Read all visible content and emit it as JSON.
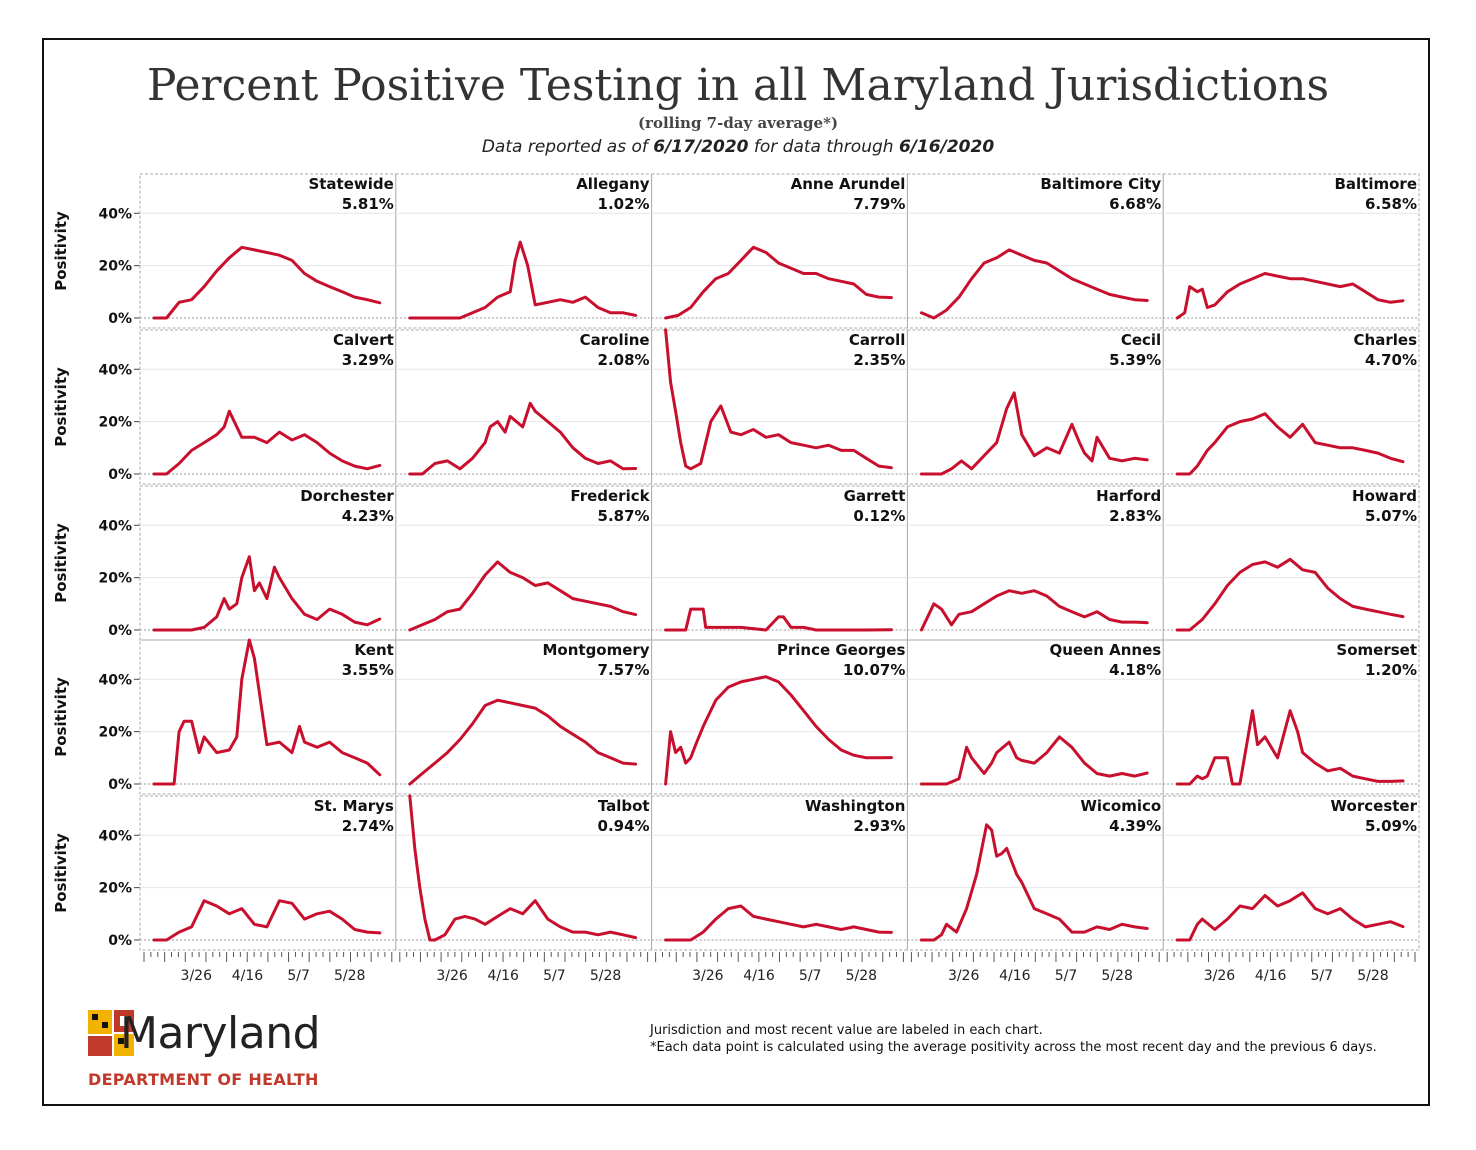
{
  "header": {
    "title": "Percent Positive Testing in all Maryland Jurisdictions",
    "subtitle": "(rolling 7-day average*)",
    "dateline_prefix": "Data reported as of ",
    "report_date": "6/17/2020",
    "dateline_middle": " for data through ",
    "through_date": "6/16/2020"
  },
  "colors": {
    "line": "#c8102e",
    "grid": "#e6e6e6",
    "border": "#aaaaaa"
  },
  "footer": {
    "logo_word": "Maryland",
    "logo_dept": "DEPARTMENT OF HEALTH",
    "note_1": "Jurisdiction and most recent value are labeled in each chart.",
    "note_2": "*Each data point is calculated using the average positivity across the most recent day and the previous 6 days."
  },
  "chart_data": {
    "type": "line",
    "ylabel": "Positivity",
    "y_ticks": [
      "0%",
      "20%",
      "40%"
    ],
    "ylim": [
      0,
      55
    ],
    "x_ticks": [
      "3/26",
      "4/16",
      "5/7",
      "5/28"
    ],
    "panels": [
      {
        "name": "Statewide",
        "latest": "5.81%",
        "x": [
          0,
          5,
          10,
          15,
          20,
          25,
          30,
          35,
          40,
          45,
          50,
          55,
          60,
          65,
          70,
          75,
          80,
          85,
          90
        ],
        "values": [
          0,
          0,
          6,
          7,
          12,
          18,
          23,
          27,
          26,
          25,
          24,
          22,
          17,
          14,
          12,
          10,
          8,
          7,
          5.8
        ]
      },
      {
        "name": "Allegany",
        "latest": "1.02%",
        "x": [
          0,
          10,
          20,
          25,
          30,
          35,
          40,
          42,
          44,
          47,
          50,
          55,
          60,
          65,
          70,
          75,
          80,
          85,
          90
        ],
        "values": [
          0,
          0,
          0,
          2,
          4,
          8,
          10,
          22,
          29,
          20,
          5,
          6,
          7,
          6,
          8,
          4,
          2,
          2,
          1
        ]
      },
      {
        "name": "Anne Arundel",
        "latest": "7.79%",
        "x": [
          0,
          5,
          10,
          15,
          20,
          25,
          30,
          35,
          40,
          45,
          50,
          55,
          60,
          65,
          70,
          75,
          80,
          85,
          90
        ],
        "values": [
          0,
          1,
          4,
          10,
          15,
          17,
          22,
          27,
          25,
          21,
          19,
          17,
          17,
          15,
          14,
          13,
          9,
          8,
          7.8
        ]
      },
      {
        "name": "Baltimore City",
        "latest": "6.68%",
        "x": [
          0,
          5,
          10,
          15,
          20,
          25,
          30,
          35,
          40,
          45,
          50,
          55,
          60,
          65,
          70,
          75,
          80,
          85,
          90
        ],
        "values": [
          2,
          0,
          3,
          8,
          15,
          21,
          23,
          26,
          24,
          22,
          21,
          18,
          15,
          13,
          11,
          9,
          8,
          7,
          6.7
        ]
      },
      {
        "name": "Baltimore",
        "latest": "6.58%",
        "x": [
          0,
          3,
          5,
          8,
          10,
          12,
          15,
          20,
          25,
          30,
          35,
          40,
          45,
          50,
          55,
          60,
          65,
          70,
          75,
          80,
          85,
          90
        ],
        "values": [
          0,
          2,
          12,
          10,
          11,
          4,
          5,
          10,
          13,
          15,
          17,
          16,
          15,
          15,
          14,
          13,
          12,
          13,
          10,
          7,
          6,
          6.6
        ]
      },
      {
        "name": "Calvert",
        "latest": "3.29%",
        "x": [
          0,
          5,
          10,
          15,
          20,
          25,
          28,
          30,
          35,
          40,
          45,
          50,
          55,
          60,
          65,
          70,
          75,
          80,
          85,
          90
        ],
        "values": [
          0,
          0,
          4,
          9,
          12,
          15,
          18,
          24,
          14,
          14,
          12,
          16,
          13,
          15,
          12,
          8,
          5,
          3,
          2,
          3.3
        ]
      },
      {
        "name": "Caroline",
        "latest": "2.08%",
        "x": [
          0,
          5,
          10,
          15,
          20,
          25,
          30,
          32,
          35,
          38,
          40,
          45,
          48,
          50,
          55,
          60,
          65,
          70,
          75,
          80,
          85,
          90
        ],
        "values": [
          0,
          0,
          4,
          5,
          2,
          6,
          12,
          18,
          20,
          16,
          22,
          18,
          27,
          24,
          20,
          16,
          10,
          6,
          4,
          5,
          2,
          2.1
        ]
      },
      {
        "name": "Carroll",
        "latest": "2.35%",
        "x": [
          0,
          2,
          4,
          6,
          8,
          10,
          14,
          18,
          22,
          26,
          30,
          35,
          40,
          45,
          50,
          55,
          60,
          65,
          70,
          75,
          80,
          85,
          90
        ],
        "values": [
          55,
          35,
          24,
          12,
          3,
          2,
          4,
          20,
          26,
          16,
          15,
          17,
          14,
          15,
          12,
          11,
          10,
          11,
          9,
          9,
          6,
          3,
          2.4
        ]
      },
      {
        "name": "Cecil",
        "latest": "5.39%",
        "x": [
          0,
          8,
          12,
          16,
          20,
          25,
          30,
          34,
          37,
          40,
          45,
          50,
          55,
          60,
          63,
          65,
          68,
          70,
          75,
          80,
          85,
          90
        ],
        "values": [
          0,
          0,
          2,
          5,
          2,
          7,
          12,
          25,
          31,
          15,
          7,
          10,
          8,
          19,
          12,
          8,
          5,
          14,
          6,
          5,
          6,
          5.4
        ]
      },
      {
        "name": "Charles",
        "latest": "4.70%",
        "x": [
          0,
          5,
          8,
          12,
          15,
          20,
          25,
          30,
          35,
          40,
          45,
          50,
          55,
          60,
          65,
          70,
          75,
          80,
          85,
          90
        ],
        "values": [
          0,
          0,
          3,
          9,
          12,
          18,
          20,
          21,
          23,
          18,
          14,
          19,
          12,
          11,
          10,
          10,
          9,
          8,
          6,
          4.7
        ]
      },
      {
        "name": "Dorchester",
        "latest": "4.23%",
        "x": [
          0,
          10,
          15,
          20,
          25,
          28,
          30,
          33,
          35,
          38,
          40,
          42,
          45,
          48,
          50,
          55,
          60,
          65,
          70,
          75,
          80,
          85,
          90
        ],
        "values": [
          0,
          0,
          0,
          1,
          5,
          12,
          8,
          10,
          20,
          28,
          15,
          18,
          12,
          24,
          20,
          12,
          6,
          4,
          8,
          6,
          3,
          2,
          4.2
        ]
      },
      {
        "name": "Frederick",
        "latest": "5.87%",
        "x": [
          0,
          5,
          10,
          15,
          20,
          25,
          30,
          35,
          40,
          45,
          50,
          55,
          60,
          65,
          70,
          75,
          80,
          85,
          90
        ],
        "values": [
          0,
          2,
          4,
          7,
          8,
          14,
          21,
          26,
          22,
          20,
          17,
          18,
          15,
          12,
          11,
          10,
          9,
          7,
          5.9
        ]
      },
      {
        "name": "Garrett",
        "latest": "0.12%",
        "x": [
          0,
          8,
          10,
          15,
          16,
          20,
          30,
          40,
          45,
          47,
          50,
          55,
          60,
          65,
          70,
          80,
          90
        ],
        "values": [
          0,
          0,
          8,
          8,
          1,
          1,
          1,
          0,
          5,
          5,
          1,
          1,
          0,
          0,
          0,
          0,
          0.1
        ]
      },
      {
        "name": "Harford",
        "latest": "2.83%",
        "x": [
          0,
          5,
          8,
          12,
          15,
          20,
          25,
          30,
          35,
          40,
          45,
          50,
          55,
          60,
          65,
          70,
          75,
          80,
          85,
          90
        ],
        "values": [
          0,
          10,
          8,
          2,
          6,
          7,
          10,
          13,
          15,
          14,
          15,
          13,
          9,
          7,
          5,
          7,
          4,
          3,
          3,
          2.8
        ]
      },
      {
        "name": "Howard",
        "latest": "5.07%",
        "x": [
          0,
          5,
          10,
          15,
          20,
          25,
          30,
          35,
          40,
          45,
          50,
          55,
          60,
          65,
          70,
          75,
          80,
          85,
          90
        ],
        "values": [
          0,
          0,
          4,
          10,
          17,
          22,
          25,
          26,
          24,
          27,
          23,
          22,
          16,
          12,
          9,
          8,
          7,
          6,
          5.1
        ]
      },
      {
        "name": "Kent",
        "latest": "3.55%",
        "x": [
          0,
          8,
          10,
          12,
          15,
          18,
          20,
          25,
          30,
          33,
          35,
          38,
          40,
          45,
          50,
          55,
          58,
          60,
          65,
          70,
          75,
          80,
          85,
          90
        ],
        "values": [
          0,
          0,
          20,
          24,
          24,
          12,
          18,
          12,
          13,
          18,
          40,
          55,
          48,
          15,
          16,
          12,
          22,
          16,
          14,
          16,
          12,
          10,
          8,
          3.5
        ]
      },
      {
        "name": "Montgomery",
        "latest": "7.57%",
        "x": [
          0,
          5,
          10,
          15,
          20,
          25,
          30,
          35,
          40,
          45,
          50,
          55,
          60,
          65,
          70,
          75,
          80,
          85,
          90
        ],
        "values": [
          0,
          4,
          8,
          12,
          17,
          23,
          30,
          32,
          31,
          30,
          29,
          26,
          22,
          19,
          16,
          12,
          10,
          8,
          7.6
        ]
      },
      {
        "name": "Prince Georges",
        "latest": "10.07%",
        "x": [
          0,
          2,
          4,
          6,
          8,
          10,
          12,
          15,
          20,
          25,
          30,
          35,
          40,
          45,
          50,
          55,
          60,
          65,
          70,
          75,
          80,
          85,
          90
        ],
        "values": [
          0,
          20,
          12,
          14,
          8,
          10,
          15,
          22,
          32,
          37,
          39,
          40,
          41,
          39,
          34,
          28,
          22,
          17,
          13,
          11,
          10,
          10,
          10.1
        ]
      },
      {
        "name": "Queen Annes",
        "latest": "4.18%",
        "x": [
          0,
          10,
          15,
          18,
          20,
          25,
          28,
          30,
          35,
          38,
          40,
          45,
          50,
          55,
          60,
          65,
          70,
          75,
          80,
          85,
          90
        ],
        "values": [
          0,
          0,
          2,
          14,
          10,
          4,
          8,
          12,
          16,
          10,
          9,
          8,
          12,
          18,
          14,
          8,
          4,
          3,
          4,
          3,
          4.2
        ]
      },
      {
        "name": "Somerset",
        "latest": "1.20%",
        "x": [
          0,
          5,
          8,
          10,
          12,
          15,
          20,
          22,
          25,
          30,
          32,
          35,
          40,
          45,
          48,
          50,
          55,
          60,
          65,
          70,
          75,
          80,
          85,
          90
        ],
        "values": [
          0,
          0,
          3,
          2,
          3,
          10,
          10,
          0,
          0,
          28,
          15,
          18,
          10,
          28,
          20,
          12,
          8,
          5,
          6,
          3,
          2,
          1,
          1,
          1.2
        ]
      },
      {
        "name": "St. Marys",
        "latest": "2.74%",
        "x": [
          0,
          5,
          10,
          15,
          20,
          25,
          30,
          35,
          40,
          45,
          50,
          55,
          60,
          65,
          70,
          75,
          80,
          85,
          90
        ],
        "values": [
          0,
          0,
          3,
          5,
          15,
          13,
          10,
          12,
          6,
          5,
          15,
          14,
          8,
          10,
          11,
          8,
          4,
          3,
          2.7
        ]
      },
      {
        "name": "Talbot",
        "latest": "0.94%",
        "x": [
          0,
          2,
          4,
          6,
          8,
          10,
          14,
          18,
          22,
          26,
          30,
          35,
          40,
          45,
          50,
          55,
          60,
          65,
          70,
          75,
          80,
          85,
          90
        ],
        "values": [
          55,
          35,
          20,
          8,
          0,
          0,
          2,
          8,
          9,
          8,
          6,
          9,
          12,
          10,
          15,
          8,
          5,
          3,
          3,
          2,
          3,
          2,
          0.9
        ]
      },
      {
        "name": "Washington",
        "latest": "2.93%",
        "x": [
          0,
          10,
          15,
          20,
          25,
          30,
          35,
          40,
          45,
          50,
          55,
          60,
          65,
          70,
          75,
          80,
          85,
          90
        ],
        "values": [
          0,
          0,
          3,
          8,
          12,
          13,
          9,
          8,
          7,
          6,
          5,
          6,
          5,
          4,
          5,
          4,
          3,
          2.9
        ]
      },
      {
        "name": "Wicomico",
        "latest": "4.39%",
        "x": [
          0,
          5,
          8,
          10,
          14,
          18,
          22,
          26,
          28,
          30,
          32,
          34,
          36,
          38,
          40,
          45,
          50,
          55,
          60,
          65,
          70,
          75,
          80,
          85,
          90
        ],
        "values": [
          0,
          0,
          2,
          6,
          3,
          12,
          25,
          44,
          42,
          32,
          33,
          35,
          30,
          25,
          22,
          12,
          10,
          8,
          3,
          3,
          5,
          4,
          6,
          5,
          4.4
        ]
      },
      {
        "name": "Worcester",
        "latest": "5.09%",
        "x": [
          0,
          5,
          8,
          10,
          15,
          20,
          25,
          30,
          35,
          40,
          45,
          50,
          55,
          60,
          65,
          70,
          75,
          80,
          85,
          90
        ],
        "values": [
          0,
          0,
          6,
          8,
          4,
          8,
          13,
          12,
          17,
          13,
          15,
          18,
          12,
          10,
          12,
          8,
          5,
          6,
          7,
          5.1
        ]
      }
    ]
  }
}
